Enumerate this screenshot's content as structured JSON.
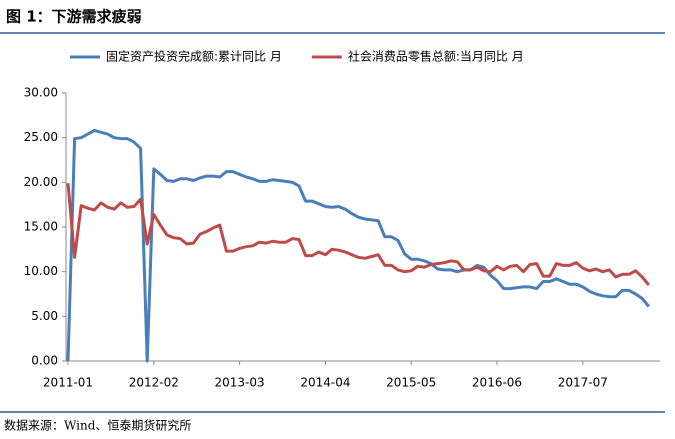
{
  "chart_data": {
    "type": "line",
    "title": "图 1：下游需求疲弱",
    "source": "数据来源：Wind、恒泰期货研究所",
    "categories": [
      "2011-01",
      null,
      null,
      null,
      null,
      null,
      null,
      null,
      null,
      null,
      null,
      null,
      null,
      "2012-02",
      null,
      null,
      null,
      null,
      null,
      null,
      null,
      null,
      null,
      null,
      null,
      null,
      "2013-03",
      null,
      null,
      null,
      null,
      null,
      null,
      null,
      null,
      null,
      null,
      null,
      null,
      "2014-04",
      null,
      null,
      null,
      null,
      null,
      null,
      null,
      null,
      null,
      null,
      null,
      null,
      "2015-05",
      null,
      null,
      null,
      null,
      null,
      null,
      null,
      null,
      null,
      null,
      null,
      null,
      "2016-06",
      null,
      null,
      null,
      null,
      null,
      null,
      null,
      null,
      null,
      null,
      null,
      null,
      "2017-07",
      null,
      null,
      null,
      null,
      null,
      null,
      null,
      null,
      null,
      null
    ],
    "series": [
      {
        "name": "固定资产投资完成额:累计同比 月",
        "color": "#4a7ebb",
        "values": [
          0,
          24.9,
          25.0,
          25.4,
          25.8,
          25.6,
          25.4,
          25.0,
          24.9,
          24.9,
          24.5,
          23.8,
          0,
          21.5,
          20.9,
          20.2,
          20.1,
          20.4,
          20.4,
          20.2,
          20.5,
          20.7,
          20.7,
          20.6,
          21.2,
          21.2,
          20.9,
          20.6,
          20.4,
          20.1,
          20.1,
          20.3,
          20.2,
          20.1,
          20.0,
          19.6,
          17.9,
          17.9,
          17.6,
          17.3,
          17.2,
          17.3,
          17.0,
          16.5,
          16.1,
          15.9,
          15.8,
          15.7,
          13.9,
          13.9,
          13.5,
          12.0,
          11.4,
          11.4,
          11.2,
          10.9,
          10.3,
          10.2,
          10.2,
          10.0,
          10.2,
          10.2,
          10.7,
          10.5,
          9.6,
          9.0,
          8.1,
          8.1,
          8.2,
          8.3,
          8.3,
          8.1,
          8.9,
          8.9,
          9.2,
          8.9,
          8.6,
          8.6,
          8.3,
          7.8,
          7.5,
          7.3,
          7.2,
          7.2,
          7.9,
          7.9,
          7.5,
          7.0,
          6.1
        ]
      },
      {
        "name": "社会消费品零售总额:当月同比 月",
        "color": "#be4b48",
        "values": [
          19.9,
          11.6,
          17.4,
          17.1,
          16.9,
          17.7,
          17.2,
          17.0,
          17.7,
          17.2,
          17.3,
          18.1,
          13.1,
          16.4,
          15.2,
          14.1,
          13.8,
          13.7,
          13.1,
          13.2,
          14.2,
          14.5,
          14.9,
          15.2,
          12.3,
          12.3,
          12.6,
          12.8,
          12.9,
          13.3,
          13.2,
          13.4,
          13.3,
          13.3,
          13.7,
          13.6,
          11.8,
          11.8,
          12.2,
          11.9,
          12.5,
          12.4,
          12.2,
          11.9,
          11.6,
          11.5,
          11.7,
          11.9,
          10.7,
          10.7,
          10.2,
          10.0,
          10.1,
          10.6,
          10.5,
          10.8,
          10.9,
          11.0,
          11.2,
          11.1,
          10.2,
          10.2,
          10.5,
          10.1,
          10.0,
          10.6,
          10.2,
          10.6,
          10.7,
          10.0,
          10.8,
          10.9,
          9.5,
          9.5,
          10.9,
          10.7,
          10.7,
          11.0,
          10.4,
          10.1,
          10.3,
          10.0,
          10.2,
          9.4,
          9.7,
          9.7,
          10.1,
          9.4,
          8.5
        ]
      }
    ],
    "ylim": [
      0,
      30
    ],
    "yticks": [
      {
        "value": 0,
        "label": "0.00"
      },
      {
        "value": 5,
        "label": "5.00"
      },
      {
        "value": 10,
        "label": "10.00"
      },
      {
        "value": 15,
        "label": "15.00"
      },
      {
        "value": 20,
        "label": "20.00"
      },
      {
        "value": 25,
        "label": "25.00"
      },
      {
        "value": 30,
        "label": "30.00"
      }
    ],
    "grid": false
  }
}
